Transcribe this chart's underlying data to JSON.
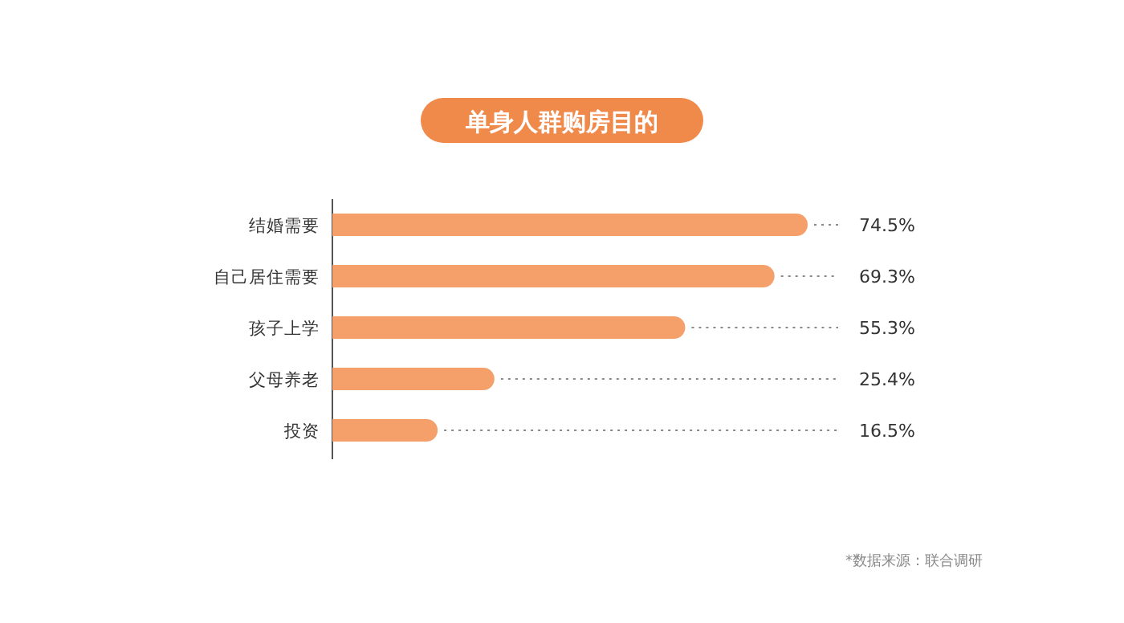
{
  "chart_data": {
    "type": "bar",
    "orientation": "horizontal",
    "title": "单身人群购房目的",
    "categories": [
      "结婚需要",
      "自己居住需要",
      "孩子上学",
      "父母养老",
      "投资"
    ],
    "values": [
      74.5,
      69.3,
      55.3,
      25.4,
      16.5
    ],
    "value_labels": [
      "74.5%",
      "69.3%",
      "55.3%",
      "25.4%",
      "16.5%"
    ],
    "color": "#f5a06b",
    "annotations": [
      "*数据来源：联合调研"
    ]
  }
}
